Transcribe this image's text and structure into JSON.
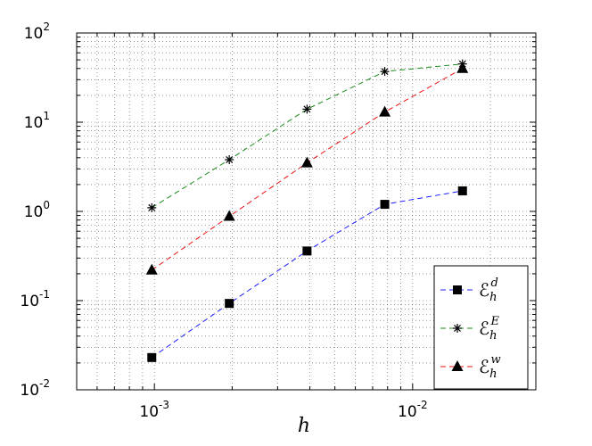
{
  "chart_data": {
    "type": "line",
    "xscale": "log",
    "yscale": "log",
    "xlim": [
      0.0005,
      0.03
    ],
    "ylim": [
      0.01,
      100
    ],
    "xlabel": "h",
    "ylabel": "",
    "title": "",
    "grid": true,
    "legend_position": "bottom-right",
    "x_ticks": [
      {
        "value": 0.001,
        "base": "10",
        "exp": "-3"
      },
      {
        "value": 0.01,
        "base": "10",
        "exp": "-2"
      }
    ],
    "y_ticks": [
      {
        "value": 0.01,
        "base": "10",
        "exp": "-2"
      },
      {
        "value": 0.1,
        "base": "10",
        "exp": "-1"
      },
      {
        "value": 1,
        "base": "10",
        "exp": "0"
      },
      {
        "value": 10,
        "base": "10",
        "exp": "1"
      },
      {
        "value": 100,
        "base": "10",
        "exp": "2"
      }
    ],
    "x": [
      0.000977,
      0.00195,
      0.0039,
      0.0078,
      0.0156
    ],
    "series": [
      {
        "name": "E_h^d",
        "label_main": "ℰ",
        "label_sub": "h",
        "label_sup": "d",
        "color": "#1f1fff",
        "marker": "square",
        "values": [
          0.023,
          0.093,
          0.36,
          1.2,
          1.7
        ]
      },
      {
        "name": "E_h^E",
        "label_main": "ℰ",
        "label_sub": "h",
        "label_sup": "E",
        "color": "#1a8a1a",
        "marker": "star",
        "values": [
          1.1,
          3.8,
          14,
          37,
          45
        ]
      },
      {
        "name": "E_h^w",
        "label_main": "ℰ",
        "label_sub": "h",
        "label_sup": "w",
        "color": "#ee1111",
        "marker": "triangle",
        "values": [
          0.22,
          0.88,
          3.5,
          13,
          40
        ]
      }
    ]
  }
}
